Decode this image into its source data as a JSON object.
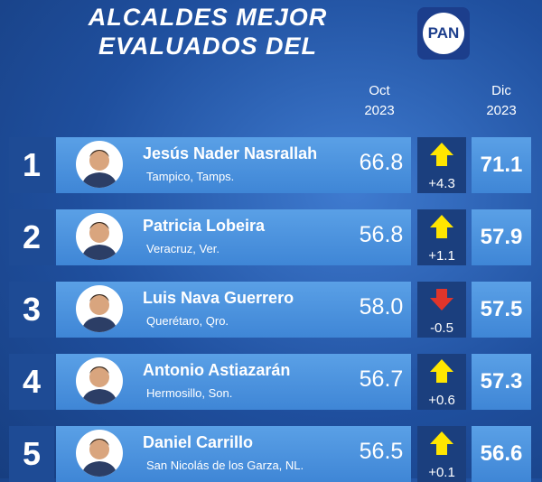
{
  "header": {
    "title_lines": [
      "ALCALDES MEJOR",
      "EVALUADOS DEL"
    ],
    "logo": "PAN",
    "columns": [
      {
        "month": "Oct",
        "year": "2023"
      },
      {
        "month": "Dic",
        "year": "2023"
      }
    ]
  },
  "table": {
    "rows": [
      {
        "rank": "1",
        "name": "Jesús Nader Nasrallah",
        "city": "Tampico, Tamps.",
        "oct": "66.8",
        "change": "+4.3",
        "dic": "71.1"
      },
      {
        "rank": "2",
        "name": "Patricia Lobeira",
        "city": "Veracruz, Ver.",
        "oct": "56.8",
        "change": "+1.1",
        "dic": "57.9"
      },
      {
        "rank": "3",
        "name": "Luis Nava Guerrero",
        "city": "Querétaro, Qro.",
        "oct": "58.0",
        "change": "-0.5",
        "dic": "57.5"
      },
      {
        "rank": "4",
        "name": "Antonio Astiazarán",
        "city": "Hermosillo, Son.",
        "oct": "56.7",
        "change": "+0.6",
        "dic": "57.3"
      },
      {
        "rank": "5",
        "name": "Daniel Carrillo",
        "city": "San Nicolás de los Garza, NL.",
        "oct": "56.5",
        "change": "+0.1",
        "dic": "56.6"
      }
    ]
  }
}
